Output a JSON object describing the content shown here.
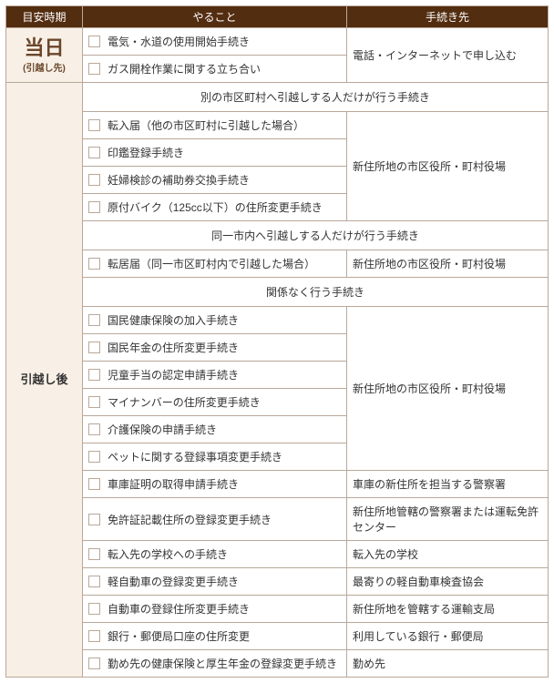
{
  "headers": {
    "timing": "目安時期",
    "task": "やること",
    "contact": "手続き先"
  },
  "timings": {
    "day": {
      "big": "当日",
      "small": "(引越し先)"
    },
    "after": "引越し後"
  },
  "sections": {
    "different": "別の市区町村へ引越しする人だけが行う手続き",
    "same": "同一市内へ引越しする人だけが行う手続き",
    "always": "関係なく行う手続き"
  },
  "contacts": {
    "phone_net": "電話・インターネットで申し込む",
    "new_addr_office": "新住所地の市区役所・町村役場",
    "police_garage": "車庫の新住所を担当する警察署",
    "police_license": "新住所地管轄の警察署または運転免許センター",
    "school": "転入先の学校",
    "kei_assoc": "最寄りの軽自動車検査協会",
    "transport": "新住所地を管轄する運輸支局",
    "bank": "利用している銀行・郵便局",
    "employer": "勤め先"
  },
  "tasks": {
    "day1": "電気・水道の使用開始手続き",
    "day2": "ガス開栓作業に関する立ち合い",
    "d1": "転入届（他の市区町村に引越した場合）",
    "d2": "印鑑登録手続き",
    "d3": "妊婦検診の補助券交換手続き",
    "d4": "原付バイク（125cc以下）の住所変更手続き",
    "s1": "転居届（同一市区町村内で引越した場合）",
    "a1": "国民健康保険の加入手続き",
    "a2": "国民年金の住所変更手続き",
    "a3": "児童手当の認定申請手続き",
    "a4": "マイナンバーの住所変更手続き",
    "a5": "介護保険の申請手続き",
    "a6": "ペットに関する登録事項変更手続き",
    "a7": "車庫証明の取得申請手続き",
    "a8": "免許証記載住所の登録変更手続き",
    "a9": "転入先の学校への手続き",
    "a10": "軽自動車の登録変更手続き",
    "a11": "自動車の登録住所変更手続き",
    "a12": "銀行・郵便局口座の住所変更",
    "a13": "勤め先の健康保険と厚生年金の登録変更手続き"
  }
}
